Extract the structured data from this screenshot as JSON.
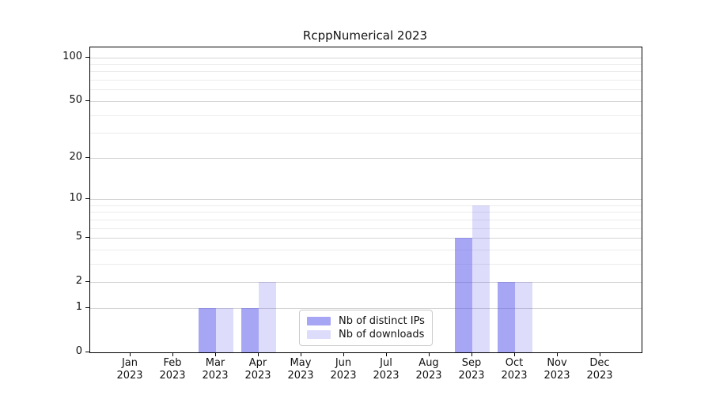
{
  "figure": {
    "background": "#ffffff"
  },
  "chart_data": {
    "type": "bar",
    "title": "RcppNumerical 2023",
    "categories": [
      "Jan",
      "Feb",
      "Mar",
      "Apr",
      "May",
      "Jun",
      "Jul",
      "Aug",
      "Sep",
      "Oct",
      "Nov",
      "Dec"
    ],
    "year": "2023",
    "series": [
      {
        "name": "Nb of distinct IPs",
        "color": "#a6a6f2",
        "fill_rgba": "rgba(85,85,235,0.52)",
        "values": [
          0,
          0,
          1,
          1,
          0,
          0,
          0,
          0,
          5,
          2,
          0,
          0
        ]
      },
      {
        "name": "Nb of downloads",
        "color": "#dbdbf8",
        "fill_rgba": "rgba(85,85,235,0.20)",
        "values": [
          0,
          0,
          1,
          2,
          0,
          0,
          0,
          0,
          9,
          2,
          0,
          0
        ]
      }
    ],
    "y_ticks": [
      0,
      1,
      2,
      5,
      10,
      20,
      50,
      100
    ],
    "y_minor_ticks": [
      3,
      4,
      6,
      7,
      8,
      9,
      30,
      40,
      60,
      70,
      80,
      90
    ],
    "scale": "log1p",
    "ylim": [
      0,
      115
    ],
    "xlabel": "",
    "ylabel": "",
    "grid": "horizontal-major-and-minor",
    "legend_position": "bottom-center-inside",
    "axis_color": "#000000",
    "gridline_major_color": "#d5d5d5",
    "gridline_minor_color": "#ececec"
  }
}
